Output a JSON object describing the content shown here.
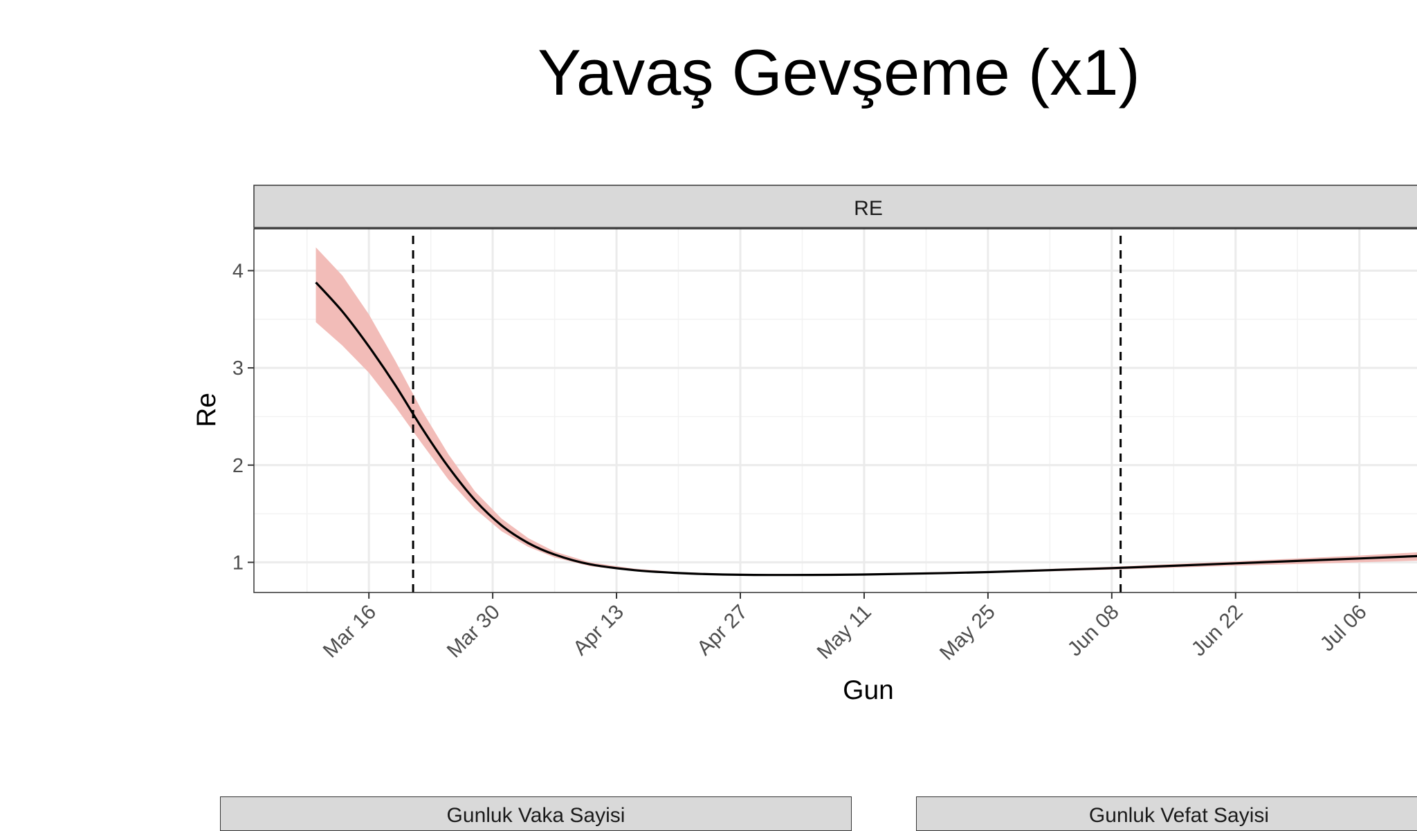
{
  "title": "Yavaş Gevşeme (x1)",
  "panels": [
    "Gunluk Vaka Sayisi",
    "Gunluk Vefat Sayisi"
  ],
  "chart_data": {
    "type": "line",
    "strip_label": "RE",
    "xlabel": "Gun",
    "ylabel": "Re",
    "x_ticks": [
      "Mar 16",
      "Mar 30",
      "Apr 13",
      "Apr 27",
      "May 11",
      "May 25",
      "Jun 08",
      "Jun 22",
      "Jul 06"
    ],
    "x_tick_dates": [
      "2020-03-16",
      "2020-03-30",
      "2020-04-13",
      "2020-04-27",
      "2020-05-11",
      "2020-05-25",
      "2020-06-08",
      "2020-06-22",
      "2020-07-06"
    ],
    "y_ticks": [
      1,
      2,
      3,
      4
    ],
    "xlim": [
      "2020-03-03",
      "2020-07-14"
    ],
    "ylim": [
      0.69,
      4.43
    ],
    "grid": true,
    "vlines": [
      "2020-03-21",
      "2020-06-09"
    ],
    "series": [
      {
        "color": "#000000",
        "x": [
          "2020-03-10",
          "2020-03-13",
          "2020-03-16",
          "2020-03-19",
          "2020-03-22",
          "2020-03-25",
          "2020-03-28",
          "2020-03-31",
          "2020-04-03",
          "2020-04-06",
          "2020-04-10",
          "2020-04-15",
          "2020-04-20",
          "2020-04-25",
          "2020-05-01",
          "2020-05-11",
          "2020-05-25",
          "2020-06-08",
          "2020-06-22",
          "2020-07-06",
          "2020-07-14"
        ],
        "y": [
          3.88,
          3.58,
          3.22,
          2.82,
          2.38,
          1.98,
          1.64,
          1.38,
          1.2,
          1.08,
          0.98,
          0.92,
          0.89,
          0.875,
          0.87,
          0.875,
          0.9,
          0.94,
          0.99,
          1.04,
          1.07
        ],
        "lower": [
          3.47,
          3.23,
          2.95,
          2.6,
          2.22,
          1.85,
          1.55,
          1.32,
          1.16,
          1.05,
          0.96,
          0.91,
          0.88,
          0.865,
          0.865,
          0.87,
          0.89,
          0.925,
          0.965,
          1.0,
          1.02
        ],
        "upper": [
          4.24,
          3.95,
          3.55,
          3.07,
          2.56,
          2.11,
          1.73,
          1.45,
          1.25,
          1.11,
          1.0,
          0.935,
          0.9,
          0.885,
          0.88,
          0.885,
          0.91,
          0.955,
          1.01,
          1.07,
          1.11
        ]
      }
    ],
    "band_color": "#f2bcb8"
  }
}
